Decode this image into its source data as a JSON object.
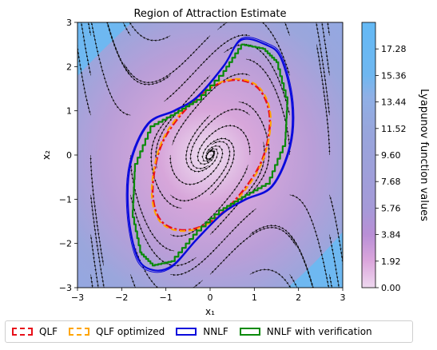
{
  "chart_data": {
    "type": "contour",
    "title": "Region of Attraction Estimate",
    "xlabel": "x₁",
    "ylabel": "x₂",
    "xlim": [
      -3,
      3
    ],
    "ylim": [
      -3,
      3
    ],
    "xticks": [
      "−3",
      "−2",
      "−1",
      "0",
      "1",
      "2",
      "3"
    ],
    "yticks": [
      "−3",
      "−2",
      "−1",
      "0",
      "1",
      "2",
      "3"
    ],
    "colorbar": {
      "label": "Lyapunov function values",
      "ticks": [
        "0.00",
        "1.92",
        "3.84",
        "5.76",
        "7.68",
        "9.60",
        "11.52",
        "13.44",
        "15.36",
        "17.28"
      ],
      "range": [
        0,
        19.2
      ]
    },
    "series": [
      {
        "name": "QLF",
        "color": "#e8101a",
        "style": "dashdot",
        "x": [
          1.35,
          1.1,
          0.55,
          -0.1,
          -0.75,
          -1.15,
          -1.3,
          -1.1,
          -0.55,
          0.1,
          0.75,
          1.2,
          1.35
        ],
        "y": [
          0.85,
          1.5,
          1.7,
          1.45,
          0.8,
          0.1,
          -0.85,
          -1.5,
          -1.7,
          -1.45,
          -0.8,
          -0.05,
          0.85
        ]
      },
      {
        "name": "QLF optimized",
        "color": "#ffa500",
        "style": "dashed",
        "x": [
          1.37,
          1.12,
          0.57,
          -0.1,
          -0.77,
          -1.17,
          -1.32,
          -1.12,
          -0.57,
          0.1,
          0.77,
          1.22,
          1.37
        ],
        "y": [
          0.87,
          1.52,
          1.72,
          1.47,
          0.82,
          0.1,
          -0.87,
          -1.52,
          -1.72,
          -1.47,
          -0.82,
          -0.05,
          0.87
        ]
      },
      {
        "name": "NNLF",
        "color": "#0a0adc",
        "style": "solid",
        "x": [
          0.7,
          1.25,
          1.6,
          1.85,
          1.8,
          1.4,
          0.8,
          0.3,
          -0.3,
          -0.85,
          -1.3,
          -1.65,
          -1.85,
          -1.8,
          -1.4,
          -0.8,
          -0.3,
          0.3,
          0.7
        ],
        "y": [
          2.6,
          2.5,
          2.2,
          1.2,
          0.2,
          -0.7,
          -1.0,
          -1.3,
          -1.9,
          -2.5,
          -2.6,
          -2.3,
          -1.3,
          -0.2,
          0.7,
          1.0,
          1.3,
          2.0,
          2.6
        ]
      },
      {
        "name": "NNLF with verification",
        "color": "#0a8a0a",
        "style": "stepped",
        "x": [
          0.7,
          1.2,
          1.5,
          1.75,
          1.7,
          1.35,
          0.8,
          0.3,
          -0.3,
          -0.8,
          -1.25,
          -1.55,
          -1.75,
          -1.7,
          -1.35,
          -0.8,
          -0.3,
          0.3,
          0.7
        ],
        "y": [
          2.5,
          2.4,
          2.1,
          1.15,
          0.2,
          -0.65,
          -0.95,
          -1.25,
          -1.8,
          -2.4,
          -2.5,
          -2.2,
          -1.25,
          -0.2,
          0.65,
          0.95,
          1.25,
          1.9,
          2.5
        ]
      }
    ],
    "legend_position": "bottom"
  }
}
